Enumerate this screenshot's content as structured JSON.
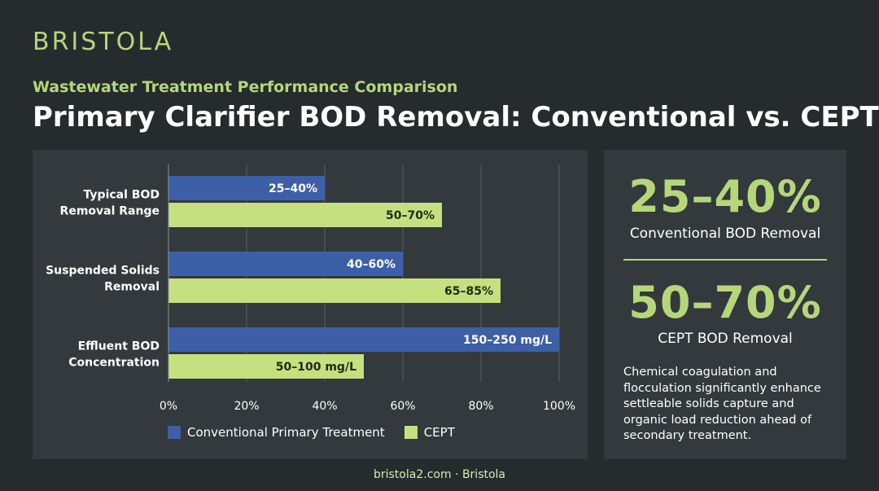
{
  "brand": {
    "logo_text": "BRISTOLA"
  },
  "header": {
    "subtitle": "Wastewater Treatment Performance Comparison",
    "title": "Primary Clarifier BOD Removal: Conventional vs. CEPT"
  },
  "colors": {
    "conventional": "#3d5fa8",
    "cept": "#c5e07f",
    "accent": "#b5d77a"
  },
  "chart_data": {
    "type": "bar",
    "orientation": "horizontal",
    "categories": [
      [
        "Typical BOD",
        "Removal Range"
      ],
      [
        "Suspended Solids",
        "Removal"
      ],
      [
        "Effluent BOD",
        "Concentration"
      ]
    ],
    "series": [
      {
        "name": "Conventional Primary Treatment",
        "values": [
          40,
          60,
          100
        ],
        "labels": [
          "25–40%",
          "40–60%",
          "150–250 mg/L"
        ]
      },
      {
        "name": "CEPT",
        "values": [
          70,
          85,
          50
        ],
        "labels": [
          "50–70%",
          "65–85%",
          "50–100 mg/L"
        ]
      }
    ],
    "xlim": [
      0,
      100
    ],
    "xticks": [
      "0%",
      "20%",
      "40%",
      "60%",
      "80%",
      "100%"
    ],
    "grid": true,
    "legend_position": "bottom"
  },
  "stats": {
    "conventional_value": "25–40%",
    "conventional_caption": "Conventional BOD Removal",
    "cept_value": "50–70%",
    "cept_caption": "CEPT BOD Removal",
    "note": "Chemical coagulation and flocculation significantly enhance settleable solids capture and organic load reduction ahead of secondary treatment."
  },
  "footer": {
    "text": "bristola2.com · Bristola"
  }
}
